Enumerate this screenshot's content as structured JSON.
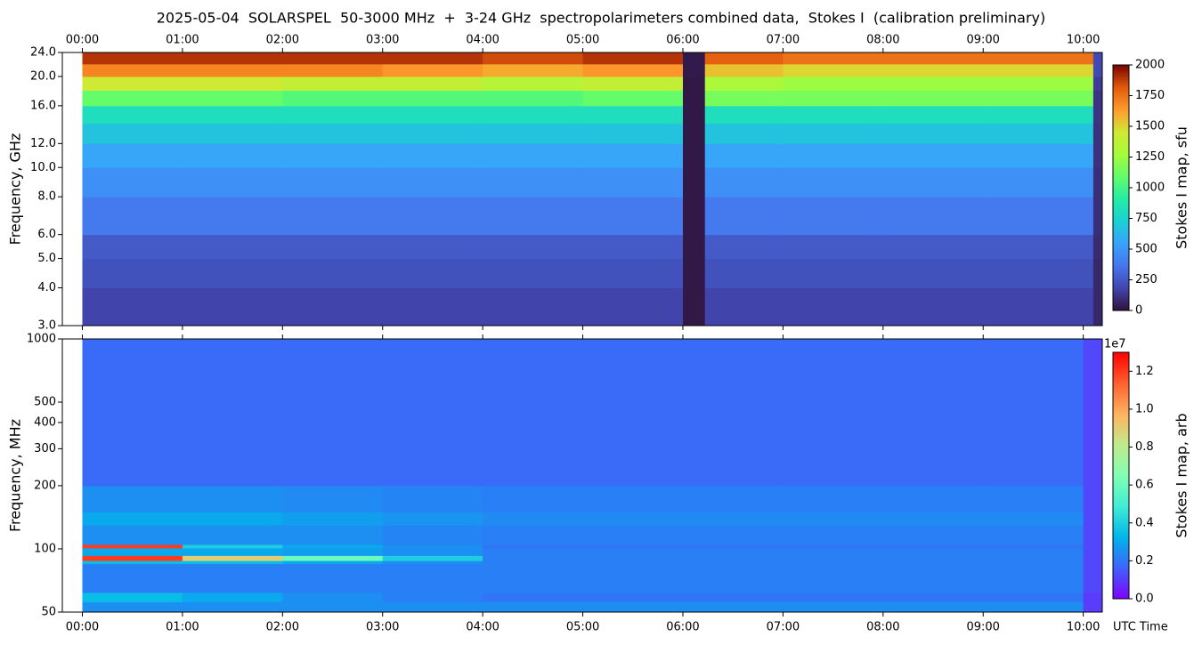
{
  "chart_data": [
    {
      "type": "heatmap",
      "title": "2025-05-04  SOLARSPEL  50-3000 MHz  +  3-24 GHz  spectropolarimeters combined data,  Stokes I  (calibration preliminary)",
      "ylabel": "Frequency, GHz",
      "colorbar_label": "Stokes I map, sfu",
      "colormap": "turbo",
      "log_y": true,
      "xtick_side": "top",
      "x_edges": [
        0,
        1,
        2,
        3,
        4,
        5,
        6,
        6.22,
        7,
        8,
        9,
        10.1,
        10.19
      ],
      "y_edges": [
        3,
        4,
        5,
        6,
        8,
        10,
        12,
        14,
        16,
        18,
        20,
        22,
        24
      ],
      "z": [
        [
          180,
          180,
          180,
          180,
          180,
          180,
          20,
          180,
          180,
          180,
          180,
          80
        ],
        [
          230,
          230,
          230,
          230,
          230,
          230,
          20,
          230,
          230,
          230,
          230,
          80
        ],
        [
          260,
          260,
          260,
          260,
          260,
          260,
          20,
          260,
          260,
          260,
          260,
          90
        ],
        [
          380,
          380,
          380,
          380,
          380,
          380,
          20,
          380,
          380,
          380,
          380,
          100
        ],
        [
          470,
          470,
          470,
          470,
          470,
          470,
          20,
          470,
          470,
          470,
          470,
          100
        ],
        [
          560,
          560,
          560,
          560,
          560,
          560,
          20,
          560,
          560,
          560,
          560,
          110
        ],
        [
          680,
          680,
          680,
          680,
          680,
          680,
          20,
          680,
          680,
          680,
          680,
          110
        ],
        [
          820,
          820,
          820,
          820,
          820,
          820,
          20,
          820,
          820,
          820,
          820,
          120
        ],
        [
          1100,
          1100,
          1050,
          1050,
          1050,
          1100,
          20,
          1150,
          1150,
          1150,
          1150,
          120
        ],
        [
          1450,
          1450,
          1400,
          1400,
          1350,
          1400,
          20,
          1300,
          1250,
          1250,
          1250,
          150
        ],
        [
          1700,
          1700,
          1700,
          1650,
          1600,
          1650,
          30,
          1550,
          1500,
          1500,
          1500,
          200
        ],
        [
          1900,
          1900,
          1900,
          1900,
          1850,
          1900,
          30,
          1800,
          1750,
          1750,
          1750,
          200
        ]
      ],
      "xlim": [
        -0.2,
        10.19
      ],
      "ylim": [
        3,
        24
      ],
      "xticks": [
        {
          "value": 0,
          "label": "00:00"
        },
        {
          "value": 1,
          "label": "01:00"
        },
        {
          "value": 2,
          "label": "02:00"
        },
        {
          "value": 3,
          "label": "03:00"
        },
        {
          "value": 4,
          "label": "04:00"
        },
        {
          "value": 5,
          "label": "05:00"
        },
        {
          "value": 6,
          "label": "06:00"
        },
        {
          "value": 7,
          "label": "07:00"
        },
        {
          "value": 8,
          "label": "08:00"
        },
        {
          "value": 9,
          "label": "09:00"
        },
        {
          "value": 10,
          "label": "10:00"
        }
      ],
      "yticks": [
        {
          "value": 3,
          "label": "3.0"
        },
        {
          "value": 4,
          "label": "4.0"
        },
        {
          "value": 5,
          "label": "5.0"
        },
        {
          "value": 6,
          "label": "6.0"
        },
        {
          "value": 8,
          "label": "8.0"
        },
        {
          "value": 10,
          "label": "10.0"
        },
        {
          "value": 12,
          "label": "12.0"
        },
        {
          "value": 16,
          "label": "16.0"
        },
        {
          "value": 20,
          "label": "20.0"
        },
        {
          "value": 24,
          "label": "24.0"
        }
      ],
      "clim": [
        0,
        2000
      ],
      "cticks": [
        0,
        250,
        500,
        750,
        1000,
        1250,
        1500,
        1750,
        2000
      ]
    },
    {
      "type": "heatmap",
      "ylabel": "Frequency, MHz",
      "xlabel": "UTC Time",
      "colorbar_label": "Stokes I map, arb",
      "colorbar_offset": "1e7",
      "colormap": "rainbow",
      "log_y": true,
      "xtick_side": "bottom",
      "x_edges": [
        0,
        1,
        2,
        3,
        4,
        5,
        6,
        7,
        8,
        9,
        10,
        10.19
      ],
      "y_edges": [
        50,
        56,
        62,
        85,
        88,
        93,
        101,
        105,
        130,
        150,
        200,
        1000
      ],
      "z": [
        [
          2500000,
          2500000,
          2500000,
          2500000,
          2500000,
          2500000,
          2500000,
          2500000,
          2500000,
          2500000,
          1000000
        ],
        [
          3500000,
          3000000,
          2500000,
          2200000,
          2000000,
          2000000,
          2000000,
          2000000,
          2000000,
          2000000,
          1000000
        ],
        [
          2200000,
          2200000,
          2200000,
          2200000,
          2200000,
          2200000,
          2200000,
          2200000,
          2200000,
          2200000,
          1200000
        ],
        [
          3500000,
          3500000,
          3000000,
          2500000,
          2200000,
          2200000,
          2200000,
          2200000,
          2200000,
          2200000,
          1200000
        ],
        [
          12000000,
          9000000,
          6000000,
          4000000,
          2200000,
          2200000,
          2200000,
          2200000,
          2200000,
          2200000,
          1200000
        ],
        [
          3000000,
          3000000,
          2800000,
          2500000,
          2200000,
          2200000,
          2200000,
          2200000,
          2200000,
          2200000,
          1200000
        ],
        [
          12000000,
          4000000,
          3000000,
          2500000,
          2000000,
          2000000,
          2000000,
          2000000,
          2000000,
          2000000,
          1200000
        ],
        [
          2500000,
          2500000,
          2500000,
          2300000,
          2200000,
          2200000,
          2200000,
          2200000,
          2200000,
          2200000,
          1200000
        ],
        [
          3000000,
          3000000,
          2800000,
          2600000,
          2400000,
          2400000,
          2400000,
          2400000,
          2400000,
          2400000,
          1200000
        ],
        [
          2500000,
          2500000,
          2400000,
          2300000,
          2200000,
          2200000,
          2200000,
          2200000,
          2200000,
          2200000,
          1200000
        ],
        [
          1800000,
          1800000,
          1800000,
          1800000,
          1800000,
          1800000,
          1800000,
          1800000,
          1800000,
          1800000,
          1200000
        ]
      ],
      "xlim": [
        -0.2,
        10.19
      ],
      "ylim": [
        50,
        1000
      ],
      "xticks": [
        {
          "value": 0,
          "label": "00:00"
        },
        {
          "value": 1,
          "label": "01:00"
        },
        {
          "value": 2,
          "label": "02:00"
        },
        {
          "value": 3,
          "label": "03:00"
        },
        {
          "value": 4,
          "label": "04:00"
        },
        {
          "value": 5,
          "label": "05:00"
        },
        {
          "value": 6,
          "label": "06:00"
        },
        {
          "value": 7,
          "label": "07:00"
        },
        {
          "value": 8,
          "label": "08:00"
        },
        {
          "value": 9,
          "label": "09:00"
        },
        {
          "value": 10,
          "label": "10:00"
        }
      ],
      "yticks": [
        50,
        100,
        200,
        300,
        400,
        500,
        1000
      ],
      "clim": [
        0,
        13000000
      ],
      "cticks": [
        {
          "value": 0,
          "label": "0.0"
        },
        {
          "value": 2000000,
          "label": "0.2"
        },
        {
          "value": 4000000,
          "label": "0.4"
        },
        {
          "value": 6000000,
          "label": "0.6"
        },
        {
          "value": 8000000,
          "label": "0.8"
        },
        {
          "value": 10000000,
          "label": "1.0"
        },
        {
          "value": 12000000,
          "label": "1.2"
        }
      ]
    }
  ]
}
